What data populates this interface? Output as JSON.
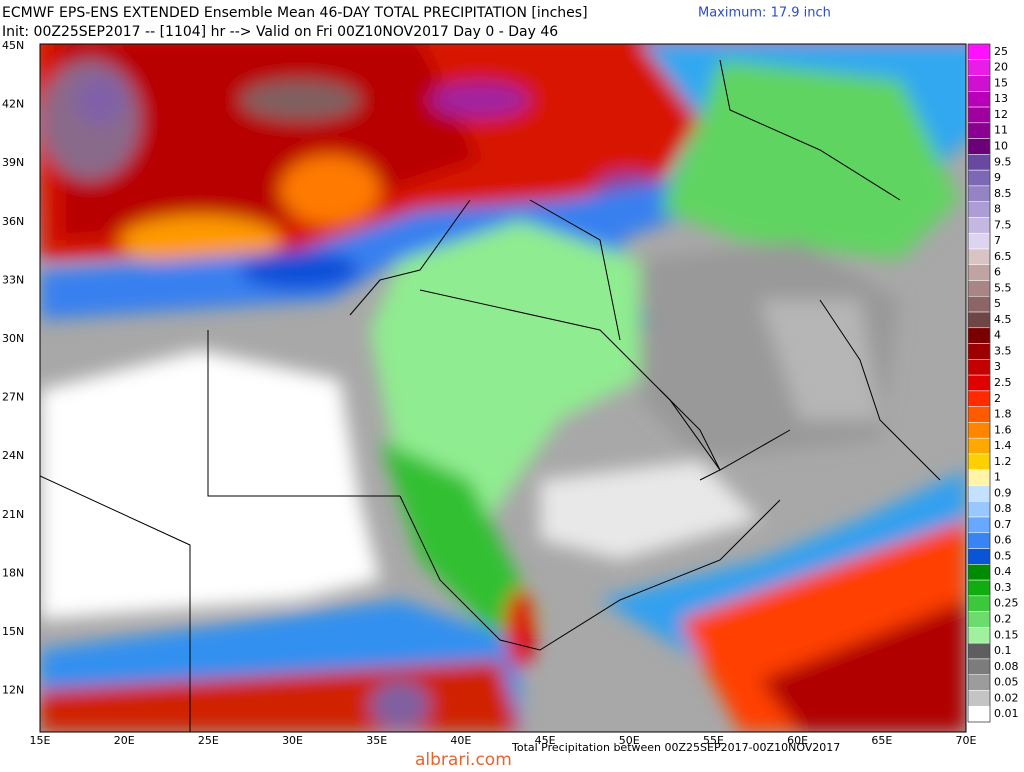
{
  "header": {
    "line1": "ECMWF EPS-ENS EXTENDED Ensemble Mean 46-DAY TOTAL PRECIPITATION [inches]",
    "maximum": "Maximum: 17.9 inch",
    "line2": "Init: 00Z25SEP2017 -- [1104] hr --> Valid on Fri 00Z10NOV2017  Day 0 - Day 46"
  },
  "map": {
    "lat_labels": [
      "45N",
      "42N",
      "39N",
      "36N",
      "33N",
      "30N",
      "27N",
      "24N",
      "21N",
      "18N",
      "15N",
      "12N"
    ],
    "lon_labels": [
      "15E",
      "20E",
      "25E",
      "30E",
      "35E",
      "40E",
      "45E",
      "50E",
      "55E",
      "60E",
      "65E",
      "70E"
    ]
  },
  "colorbar": {
    "entries": [
      {
        "label": "25",
        "color": "#ff10ff"
      },
      {
        "label": "20",
        "color": "#e81ee8"
      },
      {
        "label": "15",
        "color": "#d010d0"
      },
      {
        "label": "13",
        "color": "#b800b8"
      },
      {
        "label": "12",
        "color": "#a000a0"
      },
      {
        "label": "11",
        "color": "#8a0090"
      },
      {
        "label": "10",
        "color": "#6c0078"
      },
      {
        "label": "9.5",
        "color": "#6848a0"
      },
      {
        "label": "9",
        "color": "#7c68b4"
      },
      {
        "label": "8.5",
        "color": "#9484c4"
      },
      {
        "label": "8",
        "color": "#ac9ed4"
      },
      {
        "label": "7.5",
        "color": "#c4b8e2"
      },
      {
        "label": "7",
        "color": "#ddd4f0"
      },
      {
        "label": "6.5",
        "color": "#d8c4c4"
      },
      {
        "label": "6",
        "color": "#c0a4a4"
      },
      {
        "label": "5.5",
        "color": "#a88686"
      },
      {
        "label": "5",
        "color": "#8c6666"
      },
      {
        "label": "4.5",
        "color": "#6e4646"
      },
      {
        "label": "4",
        "color": "#7a0000"
      },
      {
        "label": "3.5",
        "color": "#9c0000"
      },
      {
        "label": "3",
        "color": "#c40000"
      },
      {
        "label": "2.5",
        "color": "#e00000"
      },
      {
        "label": "2",
        "color": "#ff2a00"
      },
      {
        "label": "1.8",
        "color": "#ff5a00"
      },
      {
        "label": "1.6",
        "color": "#ff8400"
      },
      {
        "label": "1.4",
        "color": "#ffa800"
      },
      {
        "label": "1.2",
        "color": "#ffd000"
      },
      {
        "label": "1",
        "color": "#fff4a8"
      },
      {
        "label": "0.9",
        "color": "#c4e2ff"
      },
      {
        "label": "0.8",
        "color": "#98c8ff"
      },
      {
        "label": "0.7",
        "color": "#68a8ff"
      },
      {
        "label": "0.6",
        "color": "#3884f4"
      },
      {
        "label": "0.5",
        "color": "#0a54d8"
      },
      {
        "label": "0.4",
        "color": "#008c00"
      },
      {
        "label": "0.3",
        "color": "#10ac10"
      },
      {
        "label": "0.25",
        "color": "#3cc83c"
      },
      {
        "label": "0.2",
        "color": "#6cdc6c"
      },
      {
        "label": "0.15",
        "color": "#a0f0a0"
      },
      {
        "label": "0.1",
        "color": "#5e5e5e"
      },
      {
        "label": "0.08",
        "color": "#7c7c7c"
      },
      {
        "label": "0.05",
        "color": "#9c9c9c"
      },
      {
        "label": "0.02",
        "color": "#c4c4c4"
      },
      {
        "label": "0.01",
        "color": "#ffffff"
      }
    ]
  },
  "footer": {
    "caption": "Total Precipitation between 00Z25SEP2017-00Z10NOV2017",
    "watermark": "albrari.com"
  }
}
